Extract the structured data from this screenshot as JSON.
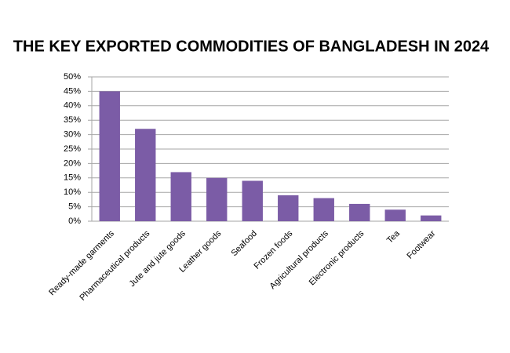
{
  "chart_data": {
    "type": "bar",
    "title": "THE KEY EXPORTED COMMODITIES OF BANGLADESH IN 2024",
    "categories": [
      "Ready-made garments",
      "Pharmaceutical products",
      "Jute and jute goods",
      "Leather goods",
      "Seafood",
      "Frozen foods",
      "Agricultural products",
      "Electronic products",
      "Tea",
      "Footwear"
    ],
    "values": [
      45,
      32,
      17,
      15,
      14,
      9,
      8,
      6,
      4,
      2
    ],
    "color": "#7b5ca6",
    "ylim": [
      0,
      50
    ],
    "yticks": [
      {
        "value": 0,
        "label": "0%"
      },
      {
        "value": 5,
        "label": "5%"
      },
      {
        "value": 10,
        "label": "10%"
      },
      {
        "value": 15,
        "label": "15%"
      },
      {
        "value": 20,
        "label": "20%"
      },
      {
        "value": 25,
        "label": "25%"
      },
      {
        "value": 30,
        "label": "30%"
      },
      {
        "value": 35,
        "label": "35%"
      },
      {
        "value": 40,
        "label": "40%"
      },
      {
        "value": 45,
        "label": "45%"
      },
      {
        "value": 50,
        "label": "50%"
      }
    ],
    "grid": true
  }
}
